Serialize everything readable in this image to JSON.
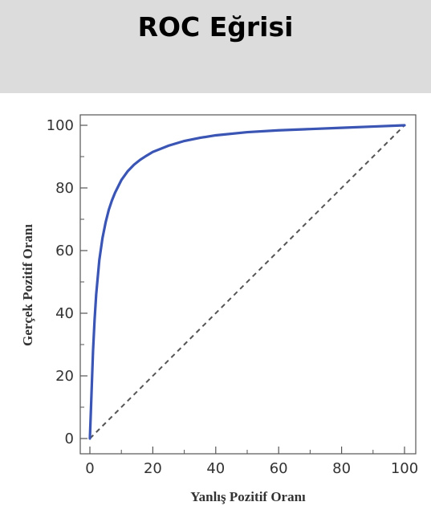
{
  "title": "ROC Eğrisi",
  "chart_data": {
    "type": "line",
    "xlabel": "Yanlış Pozitif Oranı",
    "ylabel": "Gerçek Pozitif Oranı",
    "xlim": [
      0,
      100
    ],
    "ylim": [
      0,
      100
    ],
    "xticks": [
      0,
      20,
      40,
      60,
      80,
      100
    ],
    "yticks": [
      0,
      20,
      40,
      60,
      80,
      100
    ],
    "grid": false,
    "series": [
      {
        "style": "solid",
        "color": "#3a55b4",
        "x": [
          0,
          0.5,
          1,
          1.5,
          2,
          3,
          4,
          5,
          6,
          7,
          8,
          10,
          12,
          14,
          16,
          18,
          20,
          25,
          30,
          35,
          40,
          50,
          60,
          70,
          80,
          90,
          100
        ],
        "y": [
          0,
          14,
          28,
          38,
          46,
          57,
          64,
          69,
          73,
          76,
          78.5,
          82.5,
          85.3,
          87.4,
          89,
          90.3,
          91.5,
          93.5,
          95,
          96,
          96.8,
          97.8,
          98.4,
          98.8,
          99.2,
          99.6,
          100
        ]
      },
      {
        "style": "dashed",
        "color": "#555555",
        "x": [
          0,
          100
        ],
        "y": [
          0,
          100
        ]
      }
    ]
  }
}
